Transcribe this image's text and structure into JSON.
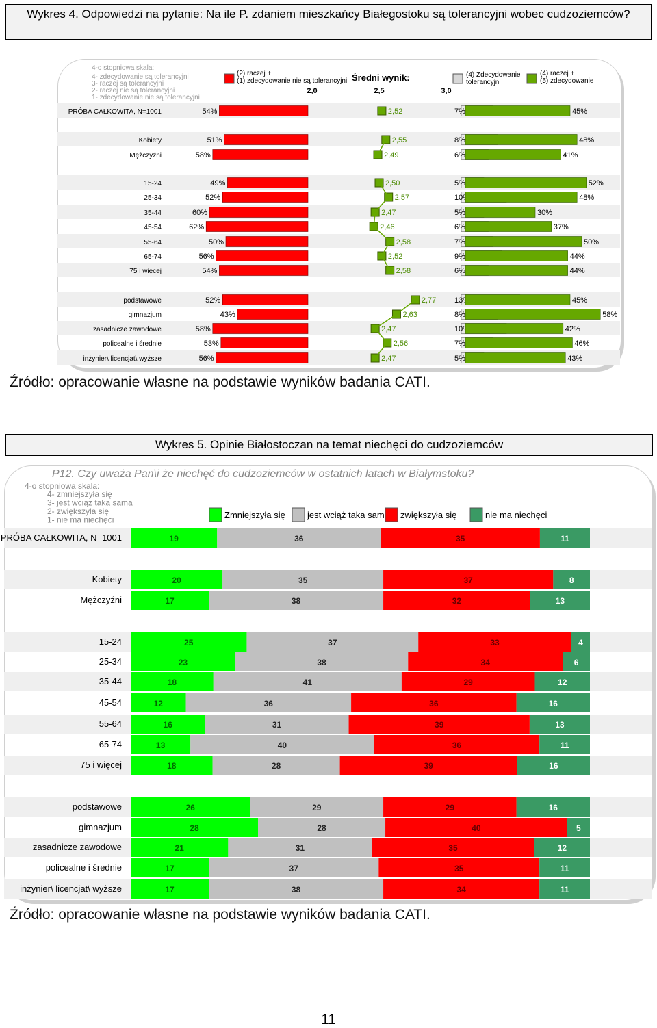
{
  "captions": {
    "figure4": "Wykres 4. Odpowiedzi na pytanie: Na ile P. zdaniem mieszkańcy Białegostoku są tolerancyjni wobec cudzoziemców?",
    "figure5": "Wykres 5. Opinie Białostoczan na temat niechęci do cudzoziemców",
    "source1": "Źródło: opracowanie własne na podstawie wyników badania CATI.",
    "source2": "Źródło: opracowanie własne na podstawie wyników badania CATI.",
    "page_number": "11"
  },
  "colors": {
    "red": "#ff0000",
    "olive_green": "#66a800",
    "bright_green": "#00ff00",
    "gray": "#c0c0c0",
    "dark_green": "#3a9a64",
    "row_shade": "#efefef"
  },
  "chart_data": [
    {
      "type": "bar",
      "scale_title": "4-o stopniowa skala:",
      "scale_items": [
        "4- zdecydowanie są tolerancyjni",
        "3- raczej są tolerancyjni",
        "2- raczej nie są tolerancyjni",
        "1- zdecydowanie nie są tolerancyjni"
      ],
      "legend": {
        "negative": "(2) raczej + (1) zdecydowanie nie są tolerancyjni",
        "mean": "Średni wynik:",
        "definitely": "(4) Zdecydowanie tolerancyjni",
        "positive": "(4) raczej + (5) zdecydowanie"
      },
      "mean_axis_ticks": [
        "2,0",
        "2,5",
        "3,0"
      ],
      "mean_axis_range": [
        2.0,
        3.0
      ],
      "groups": [
        {
          "rows": [
            {
              "label": "PRÓBA CAŁKOWITA, N=1001",
              "negative": 54,
              "mean": 2.52,
              "mean_label": "2,52",
              "definitely": 7,
              "positive": 45
            }
          ]
        },
        {
          "rows": [
            {
              "label": "Kobiety",
              "negative": 51,
              "mean": 2.55,
              "mean_label": "2,55",
              "definitely": 8,
              "positive": 48
            },
            {
              "label": "Mężczyźni",
              "negative": 58,
              "mean": 2.49,
              "mean_label": "2,49",
              "definitely": 6,
              "positive": 41
            }
          ]
        },
        {
          "rows": [
            {
              "label": "15-24",
              "negative": 49,
              "mean": 2.5,
              "mean_label": "2,50",
              "definitely": 5,
              "positive": 52
            },
            {
              "label": "25-34",
              "negative": 52,
              "mean": 2.57,
              "mean_label": "2,57",
              "definitely": 10,
              "positive": 48
            },
            {
              "label": "35-44",
              "negative": 60,
              "mean": 2.47,
              "mean_label": "2,47",
              "definitely": 5,
              "positive": 30
            },
            {
              "label": "45-54",
              "negative": 62,
              "mean": 2.46,
              "mean_label": "2,46",
              "definitely": 6,
              "positive": 37
            },
            {
              "label": "55-64",
              "negative": 50,
              "mean": 2.58,
              "mean_label": "2,58",
              "definitely": 7,
              "positive": 50
            },
            {
              "label": "65-74",
              "negative": 56,
              "mean": 2.52,
              "mean_label": "2,52",
              "definitely": 9,
              "positive": 44
            },
            {
              "label": "75 i więcej",
              "negative": 54,
              "mean": 2.58,
              "mean_label": "2,58",
              "definitely": 6,
              "positive": 44
            }
          ]
        },
        {
          "rows": [
            {
              "label": "podstawowe",
              "negative": 52,
              "mean": 2.77,
              "mean_label": "2,77",
              "definitely": 13,
              "positive": 45
            },
            {
              "label": "gimnazjum",
              "negative": 43,
              "mean": 2.63,
              "mean_label": "2,63",
              "definitely": 8,
              "positive": 58
            },
            {
              "label": "zasadnicze zawodowe",
              "negative": 58,
              "mean": 2.47,
              "mean_label": "2,47",
              "definitely": 10,
              "positive": 42
            },
            {
              "label": "policealne i średnie",
              "negative": 53,
              "mean": 2.56,
              "mean_label": "2,56",
              "definitely": 7,
              "positive": 46
            },
            {
              "label": "inżynier\\ licencjat\\ wyższe",
              "negative": 56,
              "mean": 2.47,
              "mean_label": "2,47",
              "definitely": 5,
              "positive": 43
            }
          ]
        }
      ]
    },
    {
      "type": "bar",
      "question": "P12. Czy uważa Pan\\i że niechęć do cudzoziemców w ostatnich latach w Białymstoku?",
      "scale_title": "4-o stopniowa skala:",
      "scale_items": [
        "4- zmniejszyła się",
        "3- jest wciąż taka sama",
        "2- zwiększyła się",
        "1- nie ma niechęci"
      ],
      "series": [
        {
          "name": "Zmniejszyła się",
          "color": "#00ff00"
        },
        {
          "name": "jest wciąż taka sama",
          "color": "#c0c0c0"
        },
        {
          "name": "zwiększyła się",
          "color": "#ff0000"
        },
        {
          "name": "nie ma niechęci",
          "color": "#3a9a64"
        }
      ],
      "groups": [
        {
          "rows": [
            {
              "label": "PRÓBA CAŁKOWITA, N=1001",
              "values": [
                19,
                36,
                35,
                11
              ]
            }
          ]
        },
        {
          "rows": [
            {
              "label": "Kobiety",
              "values": [
                20,
                35,
                37,
                8
              ]
            },
            {
              "label": "Mężczyźni",
              "values": [
                17,
                38,
                32,
                13
              ]
            }
          ]
        },
        {
          "rows": [
            {
              "label": "15-24",
              "values": [
                25,
                37,
                33,
                4
              ]
            },
            {
              "label": "25-34",
              "values": [
                23,
                38,
                34,
                6
              ]
            },
            {
              "label": "35-44",
              "values": [
                18,
                41,
                29,
                12
              ]
            },
            {
              "label": "45-54",
              "values": [
                12,
                36,
                36,
                16
              ]
            },
            {
              "label": "55-64",
              "values": [
                16,
                31,
                39,
                13
              ]
            },
            {
              "label": "65-74",
              "values": [
                13,
                40,
                36,
                11
              ]
            },
            {
              "label": "75 i więcej",
              "values": [
                18,
                28,
                39,
                16
              ]
            }
          ]
        },
        {
          "rows": [
            {
              "label": "podstawowe",
              "values": [
                26,
                29,
                29,
                16
              ]
            },
            {
              "label": "gimnazjum",
              "values": [
                28,
                28,
                40,
                5
              ]
            },
            {
              "label": "zasadnicze zawodowe",
              "values": [
                21,
                31,
                35,
                12
              ]
            },
            {
              "label": "policealne i średnie",
              "values": [
                17,
                37,
                35,
                11
              ]
            },
            {
              "label": "inżynier\\ licencjat\\ wyższe",
              "values": [
                17,
                38,
                34,
                11
              ]
            }
          ]
        }
      ]
    }
  ]
}
